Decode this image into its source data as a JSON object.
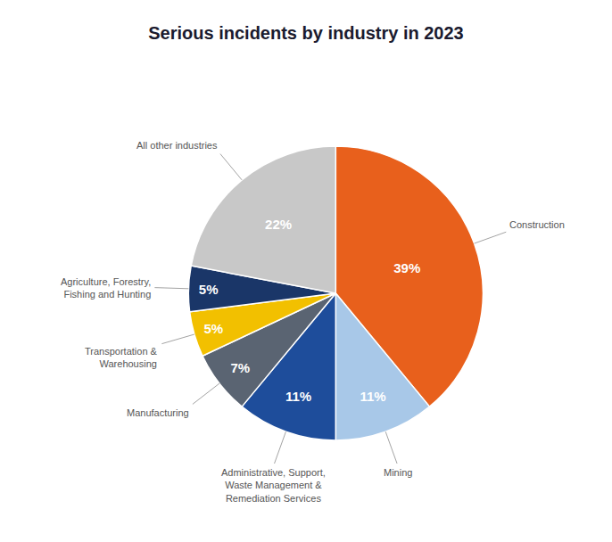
{
  "chart_data": {
    "type": "pie",
    "title": "Serious incidents by industry in 2023",
    "categories": [
      "Construction",
      "Mining",
      "Administrative, Support,\nWaste Management &\nRemediation Services",
      "Manufacturing",
      "Transportation &\nWarehousing",
      "Agriculture, Forestry,\nFishing and Hunting",
      "All other industries"
    ],
    "values": [
      39,
      11,
      11,
      7,
      5,
      5,
      22
    ],
    "value_labels": [
      "39%",
      "11%",
      "11%",
      "7%",
      "5%",
      "5%",
      "22%"
    ],
    "colors": [
      "#E8601C",
      "#A8C8E8",
      "#1E4D9B",
      "#5A6472",
      "#F2C000",
      "#1A3668",
      "#C8C8C8"
    ],
    "data_labels": true
  }
}
